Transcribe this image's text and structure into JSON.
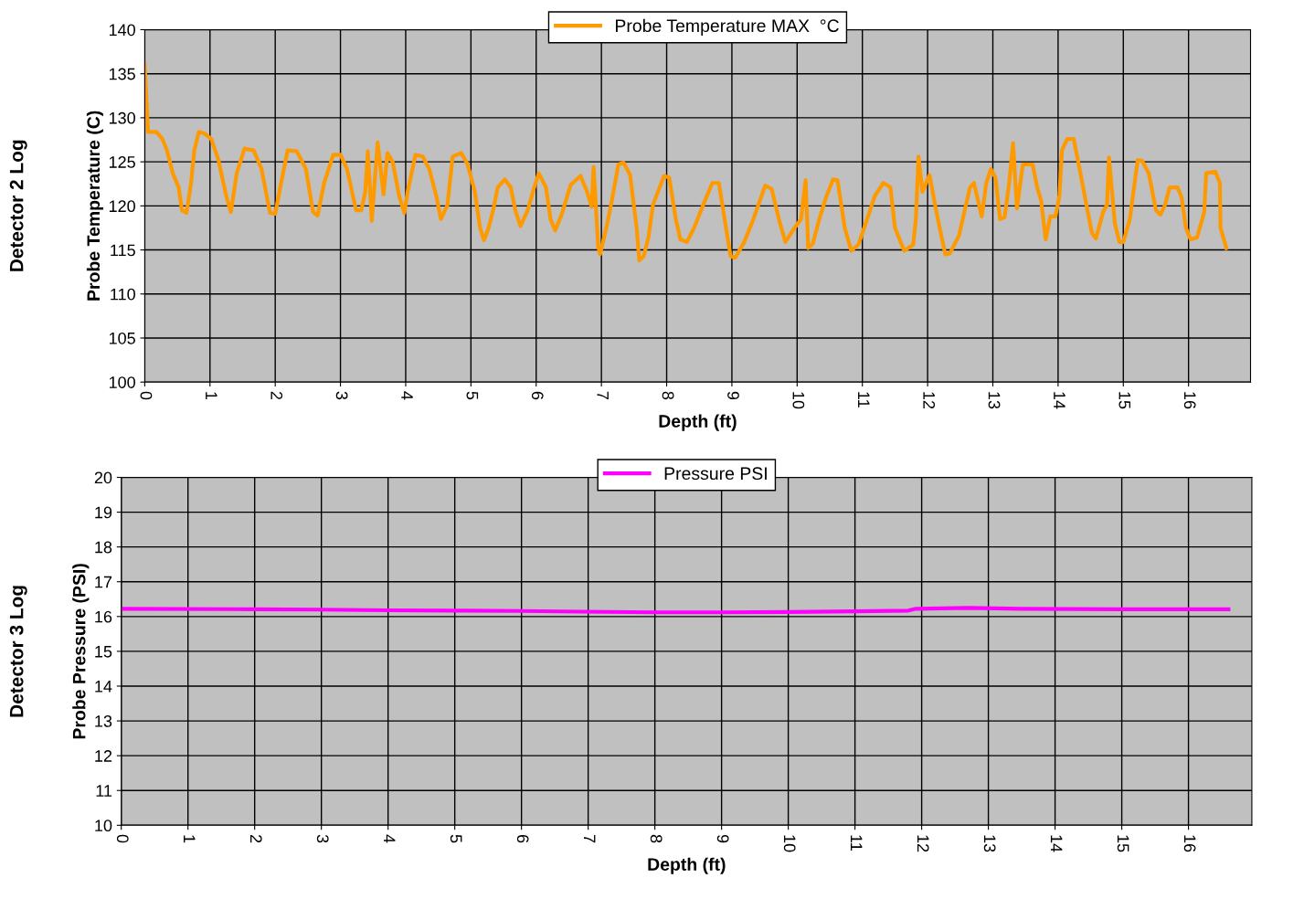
{
  "chart_data": [
    {
      "type": "line",
      "xlabel": "Depth (ft)",
      "ylabel": "Probe Temperature (C)",
      "annotations": [
        "Detector 2 Log"
      ],
      "xlim": [
        0,
        16.95
      ],
      "xticks": [
        0,
        1,
        2,
        3,
        4,
        5,
        6,
        7,
        8,
        9,
        10,
        11,
        12,
        13,
        14,
        15,
        16
      ],
      "ylim": [
        100,
        140
      ],
      "yticks": [
        100,
        105,
        110,
        115,
        120,
        125,
        130,
        135,
        140
      ],
      "grid": true,
      "legend": "top",
      "marker": "none",
      "line_style": "solid",
      "series": [
        {
          "name": "Probe Temperature MAX  °C",
          "color": "#ff9900",
          "x": [
            0,
            0.05,
            0.18,
            0.27,
            0.34,
            0.43,
            0.52,
            0.57,
            0.64,
            0.71,
            0.76,
            0.83,
            0.92,
            1.02,
            1.13,
            1.25,
            1.32,
            1.41,
            1.53,
            1.67,
            1.79,
            1.92,
            2.0,
            2.09,
            2.19,
            2.33,
            2.47,
            2.58,
            2.65,
            2.75,
            2.89,
            3.0,
            3.1,
            3.24,
            3.32,
            3.38,
            3.42,
            3.48,
            3.57,
            3.66,
            3.72,
            3.8,
            3.9,
            3.98,
            4.03,
            4.15,
            4.26,
            4.36,
            4.47,
            4.54,
            4.64,
            4.72,
            4.85,
            4.95,
            5.06,
            5.14,
            5.2,
            5.27,
            5.34,
            5.41,
            5.52,
            5.61,
            5.68,
            5.76,
            5.87,
            5.97,
            6.04,
            6.15,
            6.22,
            6.29,
            6.39,
            6.53,
            6.68,
            6.78,
            6.85,
            6.88,
            6.95,
            6.98,
            7.09,
            7.16,
            7.26,
            7.34,
            7.44,
            7.54,
            7.58,
            7.65,
            7.72,
            7.79,
            7.96,
            8.04,
            8.14,
            8.21,
            8.31,
            8.42,
            8.56,
            8.7,
            8.8,
            8.91,
            8.98,
            9.05,
            9.19,
            9.33,
            9.51,
            9.61,
            9.72,
            9.82,
            9.96,
            10.06,
            10.13,
            10.17,
            10.24,
            10.34,
            10.45,
            10.55,
            10.62,
            10.73,
            10.83,
            10.94,
            11.05,
            11.19,
            11.32,
            11.43,
            11.5,
            11.64,
            11.78,
            11.82,
            11.86,
            11.92,
            12.03,
            12.13,
            12.27,
            12.34,
            12.48,
            12.65,
            12.71,
            12.83,
            12.9,
            12.97,
            13.04,
            13.11,
            13.18,
            13.25,
            13.31,
            13.37,
            13.46,
            13.61,
            13.68,
            13.74,
            13.81,
            13.88,
            13.96,
            14.02,
            14.06,
            14.14,
            14.24,
            14.33,
            14.45,
            14.52,
            14.58,
            14.69,
            14.75,
            14.78,
            14.87,
            14.94,
            15.0,
            15.1,
            15.22,
            15.29,
            15.39,
            15.5,
            15.57,
            15.64,
            15.71,
            15.83,
            15.89,
            15.96,
            16.03,
            16.13,
            16.24,
            16.27,
            16.41,
            16.48,
            16.49,
            16.58
          ],
          "values": [
            136,
            128.4,
            128.4,
            127.6,
            126.3,
            123.7,
            122.1,
            119.5,
            119.2,
            122.6,
            126.3,
            128.4,
            128.2,
            127.6,
            125.2,
            121.1,
            119.3,
            123.7,
            126.5,
            126.3,
            124.2,
            119.2,
            119.1,
            122.6,
            126.3,
            126.2,
            124.2,
            119.3,
            118.9,
            122.6,
            125.8,
            125.8,
            124.2,
            119.5,
            119.5,
            121.6,
            126.2,
            118.3,
            127.2,
            121.3,
            126,
            125,
            121.1,
            119.2,
            121.6,
            125.8,
            125.6,
            124.2,
            121.1,
            118.5,
            120.1,
            125.6,
            126,
            124.7,
            121.6,
            117.5,
            116.1,
            117.5,
            119.5,
            122.1,
            123,
            122.1,
            119.5,
            117.7,
            119.5,
            122.1,
            123.7,
            122.1,
            118.5,
            117.2,
            119,
            122.4,
            123.4,
            121.6,
            119.9,
            124.4,
            115.4,
            114.5,
            118,
            120.6,
            124.7,
            124.9,
            123.5,
            117.5,
            113.8,
            114.3,
            116.4,
            120.1,
            123.4,
            123.2,
            118.5,
            116.2,
            115.9,
            117.5,
            120.1,
            122.6,
            122.6,
            117.5,
            114.3,
            114.1,
            115.9,
            118.5,
            122.3,
            121.9,
            118.5,
            115.9,
            117.5,
            118.5,
            122.9,
            115.2,
            115.7,
            118.5,
            121.1,
            123,
            122.9,
            117.5,
            114.9,
            115.6,
            118,
            121.1,
            122.6,
            122.1,
            117.5,
            114.9,
            115.6,
            118.5,
            125.6,
            121.6,
            123.5,
            119.5,
            114.5,
            114.6,
            116.6,
            122.1,
            122.6,
            118.8,
            122.6,
            124.2,
            123.2,
            118.5,
            118.7,
            122.6,
            127.1,
            119.7,
            124.7,
            124.7,
            122.1,
            120.6,
            116.2,
            118.8,
            118.8,
            121.1,
            126.3,
            127.6,
            127.6,
            124.2,
            119.5,
            116.9,
            116.3,
            119.3,
            120.1,
            125.5,
            118,
            115.9,
            115.9,
            118.5,
            125.2,
            125.1,
            123.7,
            119.5,
            119,
            120.1,
            122.1,
            122.1,
            121.1,
            117.5,
            116.2,
            116.4,
            119.3,
            123.7,
            123.9,
            122.6,
            117.5,
            115.2
          ]
        }
      ]
    },
    {
      "type": "line",
      "xlabel": "Depth (ft)",
      "ylabel": "Probe Pressure (PSI)",
      "annotations": [
        "Detector 3 Log"
      ],
      "xlim": [
        0,
        16.95
      ],
      "xticks": [
        0,
        1,
        2,
        3,
        4,
        5,
        6,
        7,
        8,
        9,
        10,
        11,
        12,
        13,
        14,
        15,
        16
      ],
      "ylim": [
        10,
        20
      ],
      "yticks": [
        10,
        11,
        12,
        13,
        14,
        15,
        16,
        17,
        18,
        19,
        20
      ],
      "grid": true,
      "legend": "top",
      "marker": "none",
      "line_style": "solid",
      "series": [
        {
          "name": "Pressure PSI",
          "color": "#ff00ff",
          "x": [
            0,
            2,
            3,
            4,
            5,
            6,
            6.9,
            8,
            9,
            10,
            11,
            11.8,
            11.9,
            12.7,
            13.5,
            15,
            16.6
          ],
          "values": [
            16.22,
            16.21,
            16.2,
            16.18,
            16.17,
            16.16,
            16.14,
            16.12,
            16.12,
            16.13,
            16.15,
            16.17,
            16.22,
            16.25,
            16.22,
            16.21,
            16.21
          ]
        }
      ]
    }
  ]
}
